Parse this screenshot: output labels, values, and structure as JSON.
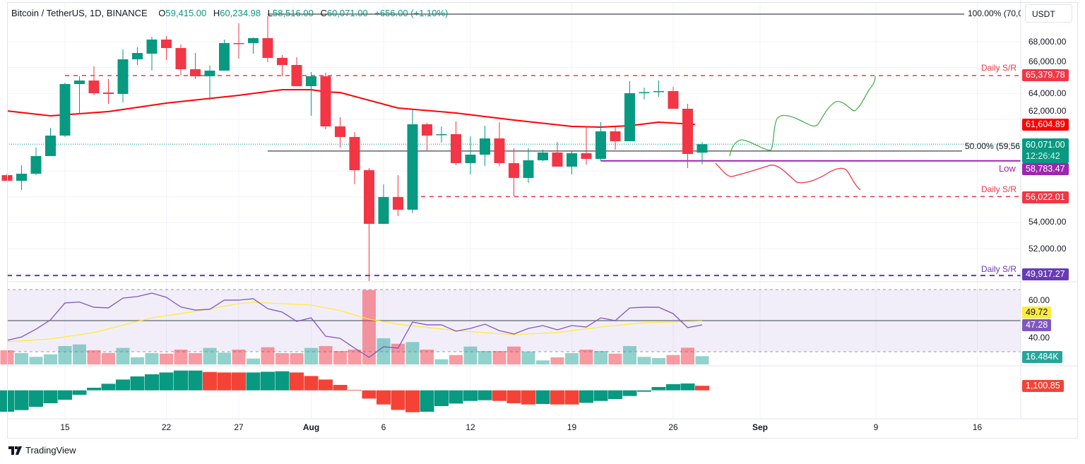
{
  "header": {
    "symbol": "Bitcoin / TetherUS, 1D, BINANCE",
    "o_label": "O",
    "o_value": "59,415.00",
    "h_label": "H",
    "h_value": "60,234.98",
    "l_label": "L",
    "l_value": "58,516.00",
    "c_label": "C",
    "c_value": "60,071.00",
    "change": "+656.00 (+1.10%)"
  },
  "currency_button": "USDT",
  "price_axis": [
    "68,000.00",
    "66,000.00",
    "64,000.00",
    "62,000.00",
    "54,000.00",
    "52,000.00"
  ],
  "rsi_axis": [
    "60.00",
    "40.00"
  ],
  "badges": {
    "resistance": "65,379.78",
    "ma": "61,604.89",
    "last_price": "60,071.00",
    "countdown": "12:26:42",
    "low": "58,783.47",
    "support": "56,022.01",
    "support_major": "49,917.27",
    "rsi_ma": "49.72",
    "rsi": "47.28",
    "volume": "16.484K",
    "ao": "1,100.85"
  },
  "drawings": {
    "fib_100": "100.00% (70,0",
    "fib_50": "50.00% (59,56",
    "low_label": "Low",
    "sr_label_1": "Daily S/R",
    "sr_label_2": "Daily S/R",
    "sr_label_3": "Daily S/R"
  },
  "time_axis": [
    {
      "label": "15",
      "bold": false
    },
    {
      "label": "22",
      "bold": false
    },
    {
      "label": "27",
      "bold": false
    },
    {
      "label": "Aug",
      "bold": true
    },
    {
      "label": "6",
      "bold": false
    },
    {
      "label": "12",
      "bold": false
    },
    {
      "label": "19",
      "bold": false
    },
    {
      "label": "26",
      "bold": false
    },
    {
      "label": "Sep",
      "bold": true
    },
    {
      "label": "9",
      "bold": false
    },
    {
      "label": "16",
      "bold": false
    }
  ],
  "brand": "TradingView",
  "colors": {
    "up": "#089981",
    "down": "#f23645",
    "ma": "#ff0000",
    "rsi": "#7e57c2",
    "rsi_ma": "#ffeb3b",
    "low": "#9c27b0",
    "major": "#673ab7"
  },
  "chart_data": {
    "type": "candlestick",
    "title": "Bitcoin / TetherUS, 1D, BINANCE",
    "first_date": "Jul 11",
    "ylim": [
      49000,
      70500
    ],
    "ohlc": [
      [
        57680,
        57800,
        57243,
        57243
      ],
      [
        57243,
        58445,
        56534,
        57789
      ],
      [
        57789,
        59809,
        57680,
        59154
      ],
      [
        59154,
        61338,
        59154,
        60738
      ],
      [
        60738,
        64833,
        60629,
        64724
      ],
      [
        64724,
        65324,
        62376,
        64997
      ],
      [
        64997,
        66089,
        63850,
        64014
      ],
      [
        64068,
        65106,
        63195,
        63959
      ],
      [
        63959,
        67399,
        63304,
        66635
      ],
      [
        66635,
        67563,
        66198,
        67126
      ],
      [
        67071,
        68382,
        65761,
        68163
      ],
      [
        68163,
        68436,
        66580,
        67508
      ],
      [
        67508,
        67781,
        65379,
        65870
      ],
      [
        65870,
        67126,
        65106,
        65324
      ],
      [
        65324,
        66143,
        63468,
        65761
      ],
      [
        65761,
        68163,
        65761,
        67890
      ],
      [
        67890,
        69419,
        66689,
        67850
      ],
      [
        67890,
        68327,
        67071,
        68273
      ],
      [
        68273,
        69965,
        66416,
        66744
      ],
      [
        66744,
        66962,
        65324,
        66198
      ],
      [
        66198,
        66799,
        64560,
        64560
      ],
      [
        64560,
        65652,
        62267,
        65324
      ],
      [
        65324,
        65597,
        61229,
        61447
      ],
      [
        61447,
        62157,
        59809,
        60629
      ],
      [
        60629,
        61011,
        56970,
        58062
      ],
      [
        58062,
        58226,
        49490,
        53913
      ],
      [
        53913,
        56970,
        53913,
        55988
      ],
      [
        55988,
        57680,
        54514,
        55005
      ],
      [
        55005,
        62758,
        54732,
        61611
      ],
      [
        61611,
        61721,
        59537,
        60738
      ],
      [
        60792,
        61447,
        60192,
        60847
      ],
      [
        60847,
        61830,
        58445,
        58609
      ],
      [
        58609,
        60683,
        57735,
        59263
      ],
      [
        59263,
        61502,
        58390,
        60519
      ],
      [
        60519,
        61775,
        58390,
        58609
      ],
      [
        58609,
        59755,
        56042,
        57461
      ],
      [
        57461,
        59755,
        57079,
        58827
      ],
      [
        58827,
        59646,
        58772,
        59427
      ],
      [
        59427,
        60246,
        58336,
        58336
      ],
      [
        58336,
        59591,
        57735,
        59373
      ],
      [
        59373,
        61447,
        58499,
        58936
      ],
      [
        58936,
        61775,
        58772,
        61065
      ],
      [
        61065,
        61393,
        59646,
        60301
      ],
      [
        60301,
        64942,
        60301,
        64014
      ],
      [
        64068,
        64451,
        63523,
        64100
      ],
      [
        64150,
        64997,
        63741,
        64178
      ],
      [
        64178,
        64505,
        62813,
        62813
      ],
      [
        62813,
        63195,
        58226,
        59318
      ],
      [
        59415,
        60235,
        58516,
        60071
      ]
    ],
    "ma_line": [
      [
        0,
        62649
      ],
      [
        3,
        62266
      ],
      [
        7,
        62594
      ],
      [
        11,
        63250
      ],
      [
        16,
        63850
      ],
      [
        19,
        64287
      ],
      [
        21,
        64287
      ],
      [
        22,
        64124
      ],
      [
        23,
        64068
      ],
      [
        27,
        62867
      ],
      [
        31,
        62485
      ],
      [
        35,
        61939
      ],
      [
        39,
        61447
      ],
      [
        41,
        61393
      ],
      [
        43,
        61502
      ],
      [
        45,
        61775
      ],
      [
        47.5,
        61605
      ]
    ],
    "levels": {
      "fib_100": 70130,
      "fib_50": 59540,
      "resistance": 65379.78,
      "low": 58783.47,
      "support": 56022.01,
      "support_major": 49917.27,
      "last": 60071
    },
    "rsi": [
      37.3,
      39.5,
      44.5,
      50.5,
      61.4,
      62,
      58.6,
      58.2,
      64.5,
      65.5,
      67.7,
      65,
      58.8,
      56.8,
      57.3,
      63.2,
      63.2,
      64.1,
      57.7,
      55.5,
      49.5,
      51.8,
      40,
      38.6,
      32.3,
      26.4,
      33.2,
      32.3,
      49.1,
      47.3,
      47.3,
      43.2,
      45,
      47.7,
      43.6,
      41.4,
      45,
      46.8,
      44.1,
      46.8,
      45.9,
      51.8,
      50,
      58.2,
      58.6,
      58.6,
      54.5,
      45.5,
      47.28
    ],
    "rsi_ma": [
      [
        0,
        36.4
      ],
      [
        3,
        38.2
      ],
      [
        6,
        42.3
      ],
      [
        10,
        51.8
      ],
      [
        13,
        55.9
      ],
      [
        16,
        60.9
      ],
      [
        17,
        61.8
      ],
      [
        21,
        60
      ],
      [
        23,
        56.4
      ],
      [
        25,
        50.9
      ],
      [
        27,
        47.7
      ],
      [
        31,
        43.6
      ],
      [
        35,
        40.9
      ],
      [
        38,
        42.3
      ],
      [
        41,
        45.9
      ],
      [
        44,
        48.6
      ],
      [
        48,
        49.72
      ]
    ],
    "rsi_levels": [
      70,
      50,
      30
    ],
    "volume_k": [
      28.2,
      22.6,
      15.1,
      20.2,
      36.7,
      39.9,
      28.2,
      23,
      32.9,
      14.1,
      22.6,
      21.6,
      29.6,
      22.6,
      32.9,
      23.5,
      29.6,
      11.7,
      34.3,
      22.6,
      22.6,
      32.9,
      36.7,
      26.8,
      29.6,
      148.5,
      52.2,
      41.3,
      44.7,
      29.6,
      10.3,
      18.8,
      35.7,
      26.8,
      26.8,
      35.7,
      25.8,
      8,
      14.1,
      22.6,
      29.6,
      26.8,
      21.6,
      36.7,
      15.1,
      12.7,
      18.8,
      33.4,
      16.484
    ],
    "ao": [
      -5150,
      -4760,
      -3960,
      -3110,
      -2260,
      -1070,
      630,
      1580,
      2600,
      3350,
      3860,
      4300,
      4760,
      4760,
      4420,
      4300,
      4300,
      4300,
      4470,
      4590,
      4300,
      3450,
      2600,
      1310,
      120,
      -1990,
      -3400,
      -4710,
      -5270,
      -5150,
      -3790,
      -3180,
      -2550,
      -2380,
      -2550,
      -3110,
      -3400,
      -3280,
      -3400,
      -3400,
      -3010,
      -2550,
      -2090,
      -1360,
      -340,
      800,
      1480,
      1650,
      1100.85
    ],
    "ao_colors": "gggggggggggggg rrrgggrrrrrrrrrgggggrrrgrrgggggggg r"
  }
}
